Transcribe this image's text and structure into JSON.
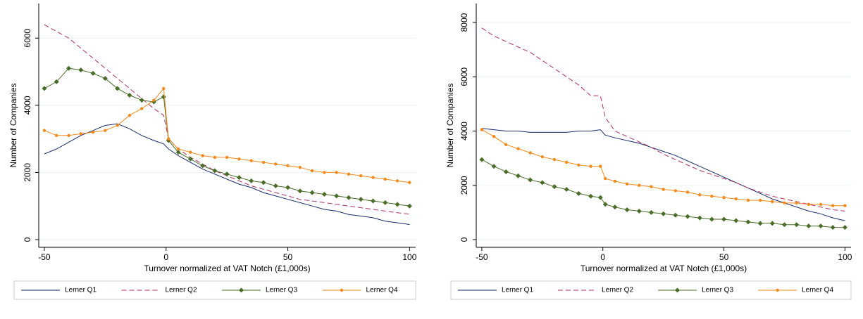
{
  "chart_data": [
    {
      "type": "line",
      "xlabel": "Turnover normalized at VAT Notch (£1,000s)",
      "ylabel": "Number of Companies",
      "x": [
        -50,
        -45,
        -40,
        -35,
        -30,
        -25,
        -20,
        -15,
        -10,
        -5,
        -1,
        1,
        5,
        10,
        15,
        20,
        25,
        30,
        35,
        40,
        45,
        50,
        55,
        60,
        65,
        70,
        75,
        80,
        85,
        90,
        95,
        100
      ],
      "xlim": [
        -52.3,
        102.5
      ],
      "xticks": [
        -50,
        0,
        50,
        100
      ],
      "ylim": [
        -230,
        7030
      ],
      "yticks": [
        0,
        2000,
        4000,
        6000
      ],
      "grid": true,
      "legend": "bottom",
      "series": [
        {
          "name": "Lerner Q1",
          "color": "#1a2b6b",
          "dash": false,
          "marker": "none",
          "values": [
            2550,
            2700,
            2900,
            3100,
            3250,
            3400,
            3450,
            3300,
            3100,
            2950,
            2850,
            2700,
            2500,
            2300,
            2100,
            1950,
            1800,
            1650,
            1550,
            1400,
            1300,
            1200,
            1100,
            1000,
            900,
            850,
            750,
            700,
            650,
            550,
            500,
            450
          ]
        },
        {
          "name": "Lerner Q2",
          "color": "#b0305e",
          "dash": true,
          "marker": "none",
          "values": [
            6400,
            6200,
            6000,
            5700,
            5400,
            5100,
            4800,
            4500,
            4200,
            3900,
            3700,
            3000,
            2700,
            2450,
            2250,
            2050,
            1900,
            1750,
            1600,
            1500,
            1400,
            1300,
            1200,
            1150,
            1100,
            1050,
            1000,
            950,
            900,
            850,
            800,
            760
          ]
        },
        {
          "name": "Lerner Q3",
          "color": "#4a6e2a",
          "dash": false,
          "marker": "diamond",
          "values": [
            4500,
            4700,
            5100,
            5050,
            4950,
            4800,
            4500,
            4300,
            4150,
            4100,
            4250,
            2950,
            2600,
            2400,
            2200,
            2050,
            1950,
            1850,
            1750,
            1700,
            1600,
            1550,
            1450,
            1400,
            1350,
            1300,
            1250,
            1200,
            1150,
            1100,
            1050,
            1000
          ]
        },
        {
          "name": "Lerner Q4",
          "color": "#f28a1c",
          "dash": false,
          "marker": "circle",
          "values": [
            3250,
            3100,
            3100,
            3150,
            3200,
            3250,
            3400,
            3700,
            3900,
            4150,
            4500,
            3000,
            2700,
            2600,
            2500,
            2450,
            2450,
            2400,
            2350,
            2300,
            2250,
            2200,
            2150,
            2050,
            2000,
            2000,
            1950,
            1900,
            1850,
            1800,
            1750,
            1700
          ]
        }
      ]
    },
    {
      "type": "line",
      "xlabel": "Turnover normalized at VAT Notch (£1,000s)",
      "ylabel": "Number of Companies",
      "x": [
        -50,
        -45,
        -40,
        -35,
        -30,
        -25,
        -20,
        -15,
        -10,
        -5,
        -1,
        1,
        5,
        10,
        15,
        20,
        25,
        30,
        35,
        40,
        45,
        50,
        55,
        60,
        65,
        70,
        75,
        80,
        85,
        90,
        95,
        100
      ],
      "xlim": [
        -52.3,
        102.5
      ],
      "xticks": [
        -50,
        0,
        50,
        100
      ],
      "ylim": [
        -285,
        8700
      ],
      "yticks": [
        0,
        2000,
        4000,
        6000,
        8000
      ],
      "grid": true,
      "legend": "bottom",
      "series": [
        {
          "name": "Lerner Q1",
          "color": "#1a2b6b",
          "dash": false,
          "marker": "none",
          "values": [
            4100,
            4050,
            4000,
            4000,
            3950,
            3950,
            3950,
            3950,
            4000,
            4000,
            4050,
            3850,
            3750,
            3650,
            3550,
            3400,
            3250,
            3100,
            2900,
            2700,
            2500,
            2300,
            2100,
            1900,
            1700,
            1500,
            1350,
            1200,
            1050,
            950,
            800,
            700
          ]
        },
        {
          "name": "Lerner Q2",
          "color": "#b0305e",
          "dash": true,
          "marker": "none",
          "values": [
            7800,
            7500,
            7300,
            7100,
            6900,
            6600,
            6300,
            6000,
            5700,
            5300,
            5300,
            4500,
            4000,
            3800,
            3600,
            3400,
            3150,
            2950,
            2750,
            2550,
            2400,
            2250,
            2100,
            1900,
            1750,
            1600,
            1500,
            1400,
            1300,
            1200,
            1100,
            1050
          ]
        },
        {
          "name": "Lerner Q3",
          "color": "#4a6e2a",
          "dash": false,
          "marker": "diamond",
          "values": [
            2950,
            2700,
            2500,
            2350,
            2200,
            2100,
            1950,
            1850,
            1700,
            1600,
            1550,
            1300,
            1200,
            1100,
            1050,
            1000,
            950,
            900,
            850,
            800,
            750,
            750,
            700,
            650,
            600,
            600,
            550,
            550,
            500,
            500,
            450,
            450
          ]
        },
        {
          "name": "Lerner Q4",
          "color": "#f28a1c",
          "dash": false,
          "marker": "circle",
          "values": [
            4050,
            3800,
            3500,
            3350,
            3200,
            3050,
            2950,
            2850,
            2750,
            2700,
            2700,
            2250,
            2150,
            2050,
            2000,
            1950,
            1850,
            1800,
            1750,
            1650,
            1600,
            1550,
            1500,
            1450,
            1450,
            1400,
            1350,
            1350,
            1300,
            1300,
            1250,
            1250
          ]
        }
      ]
    }
  ]
}
